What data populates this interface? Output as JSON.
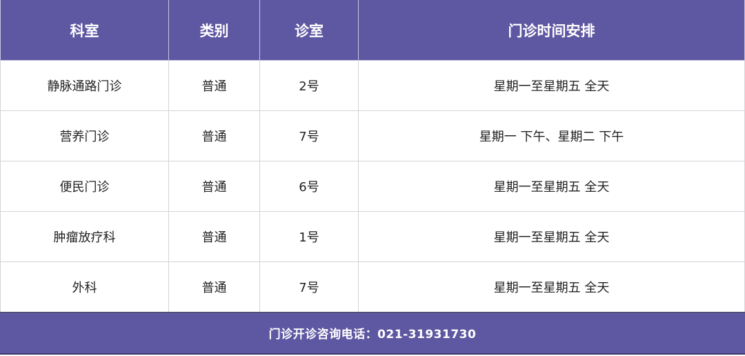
{
  "table": {
    "headers": [
      "科室",
      "类别",
      "诊室",
      "门诊时间安排"
    ],
    "rows": [
      [
        "静脉通路门诊",
        "普通",
        "2号",
        "星期一至星期五  全天"
      ],
      [
        "营养门诊",
        "普通",
        "7号",
        "星期一  下午、星期二  下午"
      ],
      [
        "便民门诊",
        "普通",
        "6号",
        "星期一至星期五  全天"
      ],
      [
        "肿瘤放疗科",
        "普通",
        "1号",
        "星期一至星期五  全天"
      ],
      [
        "外科",
        "普通",
        "7号",
        "星期一至星期五  全天"
      ]
    ]
  },
  "footer": {
    "text": "门诊开诊咨询电话：021-31931730"
  },
  "colors": {
    "header_bg": "#5e57a1",
    "header_text": "#ffffff"
  }
}
